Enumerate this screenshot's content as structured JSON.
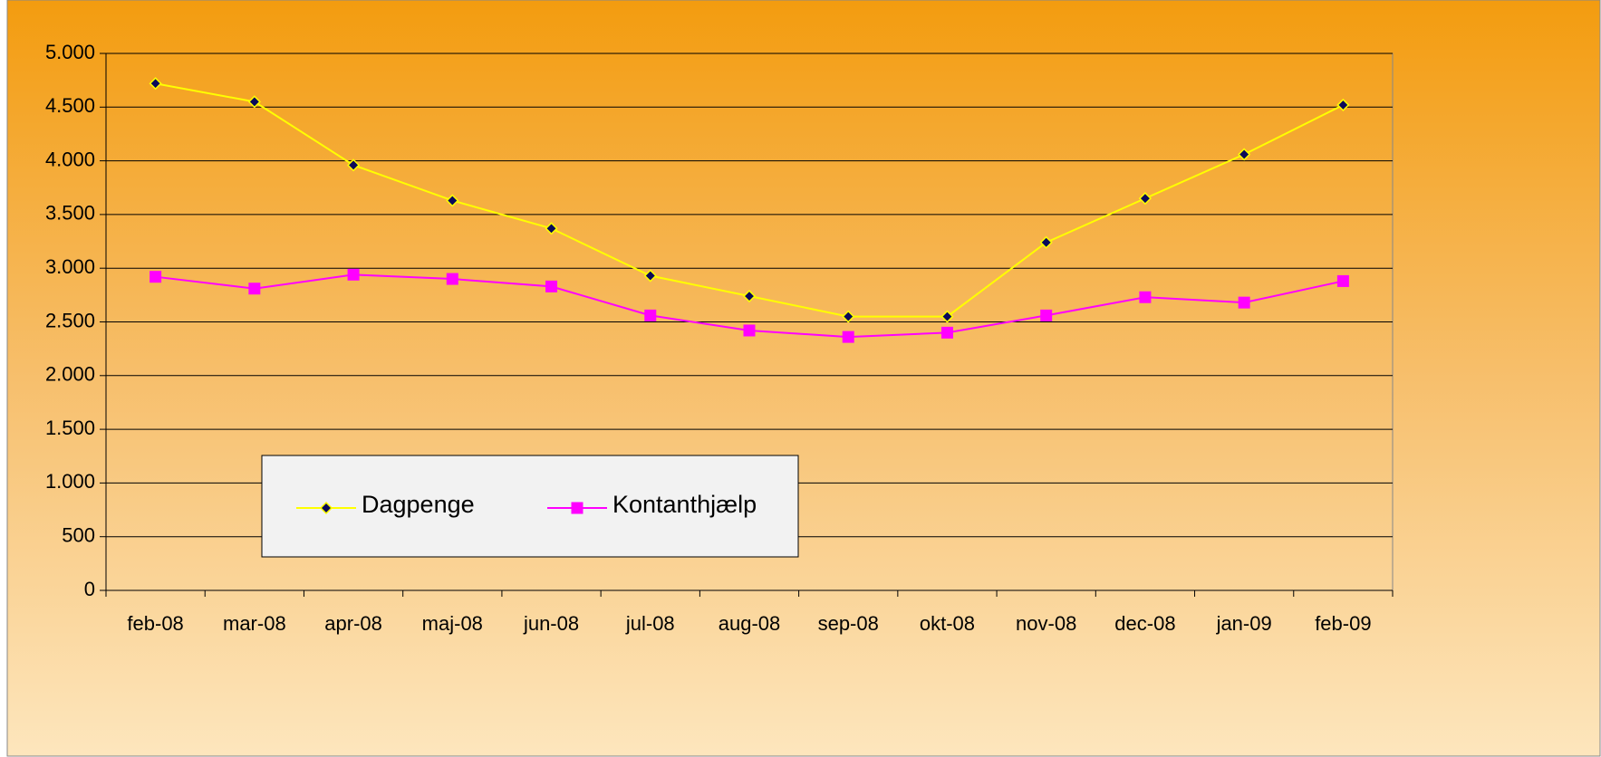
{
  "chart_data": {
    "type": "line",
    "categories": [
      "feb-08",
      "mar-08",
      "apr-08",
      "maj-08",
      "jun-08",
      "jul-08",
      "aug-08",
      "sep-08",
      "okt-08",
      "nov-08",
      "dec-08",
      "jan-09",
      "feb-09"
    ],
    "series": [
      {
        "name": "Dagpenge",
        "color": "#ffff00",
        "marker_color": "#0a0a5a",
        "values": [
          4720,
          4550,
          3960,
          3630,
          3370,
          2930,
          2740,
          2550,
          2550,
          3240,
          3650,
          4060,
          4520
        ]
      },
      {
        "name": "Kontanthjælp",
        "color": "#ff00ff",
        "marker_color": "#ff00ff",
        "values": [
          2920,
          2810,
          2940,
          2900,
          2830,
          2560,
          2420,
          2360,
          2400,
          2560,
          2730,
          2680,
          2880
        ]
      }
    ],
    "ylim": [
      0,
      5000
    ],
    "yticks": [
      0,
      500,
      {
        "value": 1000,
        "label": "1.000"
      },
      {
        "value": 1500,
        "label": "1.500"
      },
      {
        "value": 2000,
        "label": "2.000"
      },
      {
        "value": 2500,
        "label": "2.500"
      },
      {
        "value": 3000,
        "label": "3.000"
      },
      {
        "value": 3500,
        "label": "3.500"
      },
      {
        "value": 4000,
        "label": "4.000"
      },
      {
        "value": 4500,
        "label": "4.500"
      },
      {
        "value": 5000,
        "label": "5.000"
      }
    ],
    "grid": true,
    "legend": "lower left"
  }
}
